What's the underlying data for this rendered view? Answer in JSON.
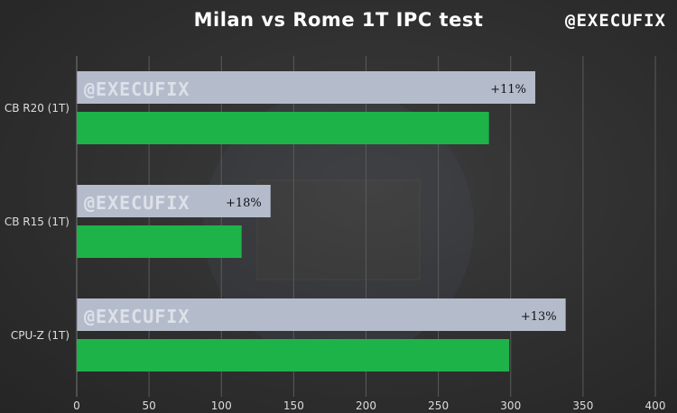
{
  "chart_data": {
    "type": "bar",
    "orientation": "horizontal",
    "title": "Milan vs Rome 1T IPC test",
    "categories": [
      "CB R20 (1T)",
      "CB R15 (1T)",
      "CPU-Z (1T)"
    ],
    "series": [
      {
        "values": [
          317,
          134,
          338
        ],
        "color": "#b4bccc",
        "labels": [
          "+11%",
          "+18%",
          "+13%"
        ]
      },
      {
        "values": [
          285,
          114,
          299
        ],
        "color": "#1db349"
      }
    ],
    "xlim": [
      0,
      400
    ],
    "xticks": [
      0,
      50,
      100,
      150,
      200,
      250,
      300,
      350,
      400
    ],
    "grid": true
  },
  "watermark": "@EXECUFIX",
  "brand": "@EXECUFIX"
}
